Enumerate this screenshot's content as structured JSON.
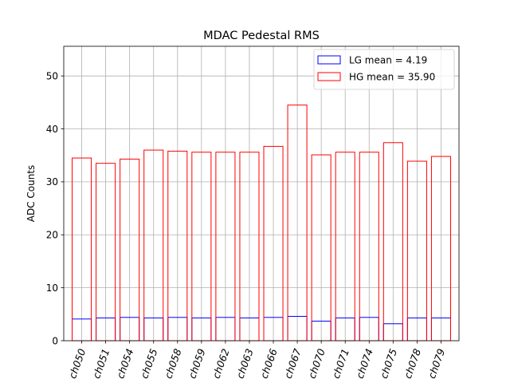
{
  "chart_data": {
    "type": "bar",
    "title": "MDAC Pedestal RMS",
    "xlabel": "",
    "ylabel": "ADC Counts",
    "ylim": [
      0,
      55.6
    ],
    "yticks": [
      0,
      10,
      20,
      30,
      40,
      50
    ],
    "grid": true,
    "legend_position": "top-right",
    "categories": [
      "ch050",
      "ch051",
      "ch054",
      "ch055",
      "ch058",
      "ch059",
      "ch062",
      "ch063",
      "ch066",
      "ch067",
      "ch070",
      "ch071",
      "ch074",
      "ch075",
      "ch078",
      "ch079"
    ],
    "series": [
      {
        "name": "LG mean = 4.19",
        "color": "#0000ff",
        "values": [
          4.1,
          4.3,
          4.4,
          4.3,
          4.4,
          4.3,
          4.4,
          4.3,
          4.4,
          4.6,
          3.7,
          4.3,
          4.4,
          3.2,
          4.3,
          4.3
        ]
      },
      {
        "name": "HG mean = 35.90",
        "color": "#ff0000",
        "values": [
          34.5,
          33.5,
          34.3,
          36.0,
          35.8,
          35.6,
          35.6,
          35.6,
          36.7,
          44.5,
          35.1,
          35.6,
          35.6,
          37.4,
          33.9,
          34.8
        ]
      }
    ]
  }
}
